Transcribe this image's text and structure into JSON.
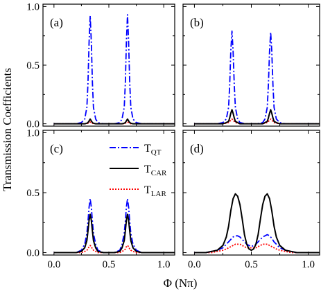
{
  "figure": {
    "ylabel": "Transmission Coefficients",
    "xlabel": "Φ (Nπ)"
  },
  "legend": [
    {
      "main": "T",
      "sub": "QT",
      "color": "#0000ff",
      "dash": "9 3 2 3"
    },
    {
      "main": "T",
      "sub": "CAR",
      "color": "#000000",
      "dash": ""
    },
    {
      "main": "T",
      "sub": "LAR",
      "color": "#ff0000",
      "dash": "2 2"
    }
  ],
  "chart_data": [
    {
      "type": "line",
      "panel": "(a)",
      "x": [
        0.0,
        0.05,
        0.1,
        0.15,
        0.2,
        0.25,
        0.28,
        0.3,
        0.31,
        0.32,
        0.33,
        0.34,
        0.35,
        0.36,
        0.38,
        0.4,
        0.45,
        0.5,
        0.55,
        0.6,
        0.62,
        0.64,
        0.65,
        0.66,
        0.67,
        0.68,
        0.69,
        0.7,
        0.72,
        0.75,
        0.8,
        0.85,
        0.9,
        0.95,
        1.0,
        1.05,
        1.1
      ],
      "series": [
        {
          "name": "T_QT",
          "values": [
            0.0,
            0.0,
            0.0,
            0.0,
            0.0,
            0.01,
            0.04,
            0.14,
            0.35,
            0.7,
            0.92,
            0.7,
            0.35,
            0.14,
            0.04,
            0.01,
            0.0,
            0.0,
            0.0,
            0.01,
            0.04,
            0.14,
            0.35,
            0.7,
            0.93,
            0.7,
            0.35,
            0.14,
            0.04,
            0.01,
            0.0,
            0.0,
            0.0,
            0.0,
            0.0,
            0.0,
            0.0
          ]
        },
        {
          "name": "T_CAR",
          "values": [
            0.0,
            0.0,
            0.0,
            0.0,
            0.0,
            0.0,
            0.0,
            0.005,
            0.01,
            0.025,
            0.04,
            0.025,
            0.01,
            0.005,
            0.0,
            0.0,
            0.0,
            0.0,
            0.0,
            0.0,
            0.0,
            0.005,
            0.01,
            0.025,
            0.04,
            0.025,
            0.01,
            0.005,
            0.0,
            0.0,
            0.0,
            0.0,
            0.0,
            0.0,
            0.0,
            0.0,
            0.0
          ]
        },
        {
          "name": "T_LAR",
          "values": [
            0.0,
            0.0,
            0.0,
            0.0,
            0.0,
            0.0,
            0.0,
            0.0,
            0.005,
            0.01,
            0.015,
            0.01,
            0.005,
            0.0,
            0.0,
            0.0,
            0.0,
            0.0,
            0.0,
            0.0,
            0.0,
            0.0,
            0.005,
            0.01,
            0.015,
            0.01,
            0.005,
            0.0,
            0.0,
            0.0,
            0.0,
            0.0,
            0.0,
            0.0,
            0.0,
            0.0,
            0.0
          ]
        }
      ],
      "xlim": [
        -0.1,
        1.1
      ],
      "ylim": [
        -0.02,
        1.02
      ]
    },
    {
      "type": "line",
      "panel": "(b)",
      "x": [
        0.0,
        0.05,
        0.1,
        0.15,
        0.2,
        0.25,
        0.28,
        0.3,
        0.31,
        0.32,
        0.33,
        0.34,
        0.35,
        0.36,
        0.38,
        0.4,
        0.45,
        0.5,
        0.55,
        0.6,
        0.62,
        0.64,
        0.65,
        0.66,
        0.67,
        0.68,
        0.69,
        0.7,
        0.72,
        0.75,
        0.8,
        0.85,
        0.9,
        0.95,
        1.0,
        1.05,
        1.1
      ],
      "series": [
        {
          "name": "T_QT",
          "values": [
            0.0,
            0.0,
            0.0,
            0.0,
            0.0,
            0.01,
            0.04,
            0.14,
            0.33,
            0.62,
            0.79,
            0.62,
            0.33,
            0.14,
            0.04,
            0.01,
            0.0,
            0.0,
            0.0,
            0.01,
            0.04,
            0.14,
            0.33,
            0.62,
            0.78,
            0.62,
            0.33,
            0.14,
            0.04,
            0.01,
            0.0,
            0.0,
            0.0,
            0.0,
            0.0,
            0.0,
            0.0
          ]
        },
        {
          "name": "T_CAR",
          "values": [
            0.0,
            0.0,
            0.0,
            0.0,
            0.0,
            0.0,
            0.01,
            0.02,
            0.05,
            0.09,
            0.12,
            0.09,
            0.05,
            0.02,
            0.01,
            0.0,
            0.0,
            0.0,
            0.0,
            0.0,
            0.01,
            0.02,
            0.05,
            0.09,
            0.12,
            0.09,
            0.05,
            0.02,
            0.01,
            0.0,
            0.0,
            0.0,
            0.0,
            0.0,
            0.0,
            0.0,
            0.0
          ]
        },
        {
          "name": "T_LAR",
          "values": [
            0.0,
            0.0,
            0.0,
            0.0,
            0.0,
            0.0,
            0.005,
            0.01,
            0.02,
            0.03,
            0.04,
            0.03,
            0.02,
            0.01,
            0.005,
            0.0,
            0.0,
            0.0,
            0.0,
            0.0,
            0.005,
            0.01,
            0.02,
            0.03,
            0.04,
            0.03,
            0.02,
            0.01,
            0.005,
            0.0,
            0.0,
            0.0,
            0.0,
            0.0,
            0.0,
            0.0,
            0.0
          ]
        }
      ],
      "xlim": [
        -0.1,
        1.1
      ],
      "ylim": [
        -0.02,
        1.02
      ]
    },
    {
      "type": "line",
      "panel": "(c)",
      "x": [
        0.0,
        0.05,
        0.1,
        0.15,
        0.2,
        0.25,
        0.28,
        0.3,
        0.31,
        0.32,
        0.33,
        0.34,
        0.35,
        0.36,
        0.38,
        0.4,
        0.45,
        0.5,
        0.55,
        0.6,
        0.62,
        0.64,
        0.65,
        0.66,
        0.67,
        0.68,
        0.69,
        0.7,
        0.72,
        0.75,
        0.8,
        0.85,
        0.9,
        0.95,
        1.0,
        1.05,
        1.1
      ],
      "series": [
        {
          "name": "T_QT",
          "values": [
            0.0,
            0.0,
            0.0,
            0.0,
            0.0,
            0.02,
            0.07,
            0.16,
            0.26,
            0.38,
            0.45,
            0.38,
            0.26,
            0.16,
            0.07,
            0.02,
            0.0,
            0.0,
            0.0,
            0.02,
            0.07,
            0.16,
            0.26,
            0.38,
            0.45,
            0.38,
            0.26,
            0.16,
            0.07,
            0.02,
            0.0,
            0.0,
            0.0,
            0.0,
            0.0,
            0.0,
            0.0
          ]
        },
        {
          "name": "T_CAR",
          "values": [
            0.0,
            0.0,
            0.0,
            0.0,
            0.0,
            0.01,
            0.04,
            0.1,
            0.18,
            0.27,
            0.32,
            0.27,
            0.18,
            0.1,
            0.04,
            0.01,
            0.0,
            0.0,
            0.0,
            0.01,
            0.04,
            0.1,
            0.18,
            0.27,
            0.32,
            0.27,
            0.18,
            0.1,
            0.04,
            0.01,
            0.0,
            0.0,
            0.0,
            0.0,
            0.0,
            0.0,
            0.0
          ]
        },
        {
          "name": "T_LAR",
          "values": [
            0.0,
            0.0,
            0.0,
            0.0,
            0.0,
            0.0,
            0.01,
            0.02,
            0.03,
            0.05,
            0.06,
            0.05,
            0.03,
            0.02,
            0.01,
            0.0,
            0.0,
            0.0,
            0.0,
            0.0,
            0.01,
            0.02,
            0.03,
            0.05,
            0.06,
            0.05,
            0.03,
            0.02,
            0.01,
            0.0,
            0.0,
            0.0,
            0.0,
            0.0,
            0.0,
            0.0,
            0.0
          ]
        }
      ],
      "xlim": [
        -0.1,
        1.1
      ],
      "ylim": [
        -0.02,
        1.02
      ]
    },
    {
      "type": "line",
      "panel": "(d)",
      "x": [
        0.0,
        0.05,
        0.1,
        0.15,
        0.2,
        0.25,
        0.28,
        0.3,
        0.32,
        0.34,
        0.36,
        0.38,
        0.4,
        0.42,
        0.44,
        0.46,
        0.48,
        0.5,
        0.52,
        0.54,
        0.56,
        0.58,
        0.6,
        0.62,
        0.64,
        0.66,
        0.68,
        0.7,
        0.72,
        0.75,
        0.8,
        0.85,
        0.9,
        0.95,
        1.0,
        1.05,
        1.1
      ],
      "series": [
        {
          "name": "T_QT",
          "values": [
            0.0,
            0.0,
            0.0,
            0.01,
            0.02,
            0.04,
            0.07,
            0.09,
            0.11,
            0.13,
            0.14,
            0.14,
            0.13,
            0.11,
            0.09,
            0.07,
            0.06,
            0.05,
            0.06,
            0.07,
            0.09,
            0.11,
            0.13,
            0.14,
            0.15,
            0.14,
            0.12,
            0.09,
            0.07,
            0.04,
            0.02,
            0.01,
            0.0,
            0.0,
            0.0,
            0.0,
            0.0
          ]
        },
        {
          "name": "T_CAR",
          "values": [
            0.0,
            0.0,
            0.0,
            0.01,
            0.02,
            0.06,
            0.13,
            0.22,
            0.35,
            0.45,
            0.49,
            0.47,
            0.4,
            0.28,
            0.15,
            0.07,
            0.03,
            0.02,
            0.03,
            0.07,
            0.15,
            0.28,
            0.4,
            0.47,
            0.49,
            0.45,
            0.35,
            0.22,
            0.13,
            0.06,
            0.02,
            0.01,
            0.0,
            0.0,
            0.0,
            0.0,
            0.0
          ]
        },
        {
          "name": "T_LAR",
          "values": [
            0.0,
            0.0,
            0.0,
            0.0,
            0.01,
            0.02,
            0.03,
            0.04,
            0.05,
            0.06,
            0.07,
            0.07,
            0.07,
            0.06,
            0.05,
            0.04,
            0.04,
            0.04,
            0.04,
            0.04,
            0.05,
            0.06,
            0.07,
            0.07,
            0.07,
            0.06,
            0.05,
            0.04,
            0.03,
            0.02,
            0.01,
            0.0,
            0.0,
            0.0,
            0.0,
            0.0,
            0.0
          ]
        }
      ],
      "xlim": [
        -0.1,
        1.1
      ],
      "ylim": [
        -0.02,
        1.02
      ]
    }
  ],
  "ticks": {
    "x": [
      "0.0",
      "0.5",
      "1.0"
    ],
    "x_values": [
      0.0,
      0.5,
      1.0
    ],
    "y": [
      "0.0",
      "0.5",
      "1.0"
    ],
    "y_values": [
      0.0,
      0.5,
      1.0
    ]
  }
}
